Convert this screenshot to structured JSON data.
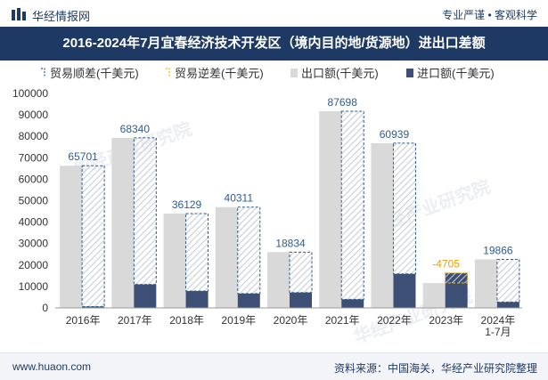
{
  "header": {
    "brand": "华经情报网",
    "slogan": "专业严谨 • 客观科学"
  },
  "title": "2016-2024年7月宜春经济技术开发区（境内目的地/货源地）进出口差额",
  "footer": {
    "url": "www.huaon.com",
    "source": "资料来源：中国海关，华经产业研究院整理"
  },
  "watermark": "华经产业研究院",
  "colors": {
    "title_bg": "#1e3a64",
    "surplus_stroke": "#2f5b8e",
    "deficit_stroke": "#f0b400",
    "export_fill": "#d9d9d9",
    "import_fill": "#3d4f75",
    "surplus_label": "#2f5b8e",
    "deficit_label": "#f0a000"
  },
  "chart_data": {
    "type": "bar",
    "categories": [
      "2016年",
      "2017年",
      "2018年",
      "2019年",
      "2020年",
      "2021年",
      "2022年",
      "2023年",
      "2024年\n1-7月"
    ],
    "series": [
      {
        "name": "贸易顺差(千美元)",
        "values": [
          65701,
          68340,
          36129,
          40311,
          18834,
          87698,
          60939,
          null,
          19866
        ]
      },
      {
        "name": "贸易逆差(千美元)",
        "values": [
          null,
          null,
          null,
          null,
          null,
          null,
          null,
          -4705,
          null
        ]
      },
      {
        "name": "出口额(千美元)",
        "values": [
          66300,
          79300,
          44000,
          47000,
          26000,
          91700,
          76800,
          11600,
          22600
        ]
      },
      {
        "name": "进口额(千美元)",
        "values": [
          600,
          10960,
          7870,
          6690,
          7170,
          4000,
          15860,
          16300,
          2730
        ]
      }
    ],
    "data_labels": [
      "65701",
      "68340",
      "36129",
      "40311",
      "18834",
      "87698",
      "60939",
      "-4705",
      "19866"
    ],
    "ylim": [
      0,
      100000
    ],
    "yticks": [
      "0",
      "10000",
      "20000",
      "30000",
      "40000",
      "50000",
      "60000",
      "70000",
      "80000",
      "90000",
      "100000"
    ],
    "legend_position": "top",
    "grid": false
  }
}
